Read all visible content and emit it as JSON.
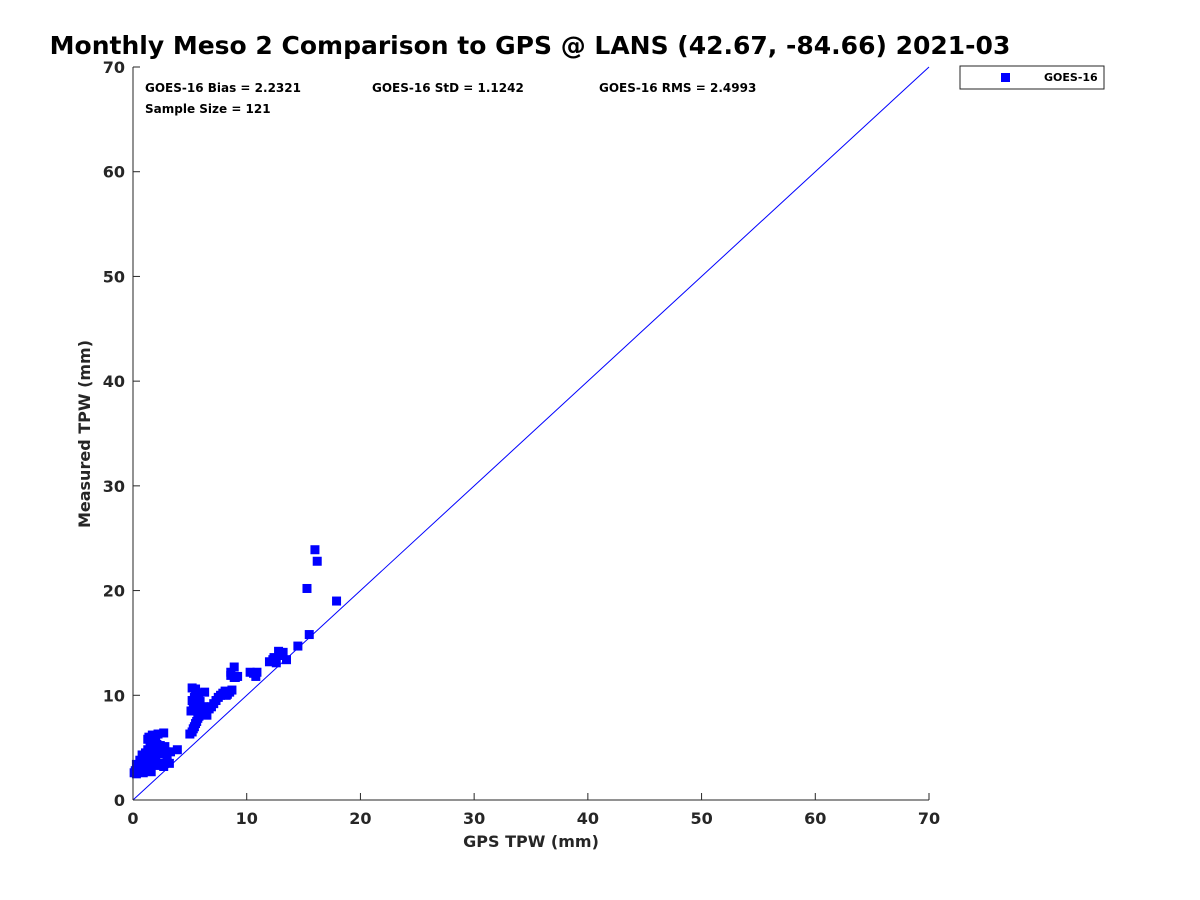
{
  "chart_data": {
    "type": "scatter",
    "title": "Monthly Meso 2 Comparison to GPS @ LANS (42.67, -84.66) 2021-03",
    "xlabel": "GPS TPW (mm)",
    "ylabel": "Measured TPW (mm)",
    "xlim": [
      0,
      70
    ],
    "ylim": [
      0,
      70
    ],
    "xticks": [
      0,
      10,
      20,
      30,
      40,
      50,
      60,
      70
    ],
    "yticks": [
      0,
      10,
      20,
      30,
      40,
      50,
      60,
      70
    ],
    "grid": false,
    "legend_position": "outside-top-right",
    "reference_line": {
      "from": [
        0,
        0
      ],
      "to": [
        70,
        70
      ],
      "color": "#0000ff"
    },
    "stats": {
      "bias": "GOES-16 Bias = 2.2321",
      "std": "GOES-16 StD = 1.1242",
      "rms": "GOES-16 RMS = 2.4993",
      "sample": "Sample Size = 121"
    },
    "series": [
      {
        "name": "GOES-16",
        "color": "#0000ff",
        "marker": "square",
        "x": [
          0.1,
          0.2,
          0.3,
          0.4,
          0.5,
          0.6,
          0.7,
          0.8,
          0.9,
          1.0,
          1.1,
          1.2,
          1.3,
          1.4,
          1.5,
          1.6,
          0.3,
          0.6,
          0.9,
          1.2,
          1.5,
          1.8,
          2.1,
          2.4,
          2.7,
          3.0,
          3.2,
          0.8,
          1.1,
          1.4,
          1.7,
          2.0,
          2.3,
          2.6,
          2.9,
          1.3,
          1.6,
          1.9,
          2.2,
          2.5,
          2.8,
          1.5,
          1.8,
          2.1,
          2.4,
          1.4,
          1.7,
          2.0,
          2.7,
          3.3,
          3.9,
          1.3,
          1.6,
          1.9,
          2.8,
          3.0,
          2.2,
          5.0,
          5.2,
          5.3,
          5.4,
          5.5,
          5.6,
          5.7,
          5.8,
          5.9,
          6.0,
          6.1,
          6.2,
          6.3,
          6.5,
          6.7,
          6.9,
          7.1,
          7.3,
          7.5,
          7.7,
          7.9,
          8.1,
          8.3,
          8.5,
          8.7,
          8.9,
          5.1,
          5.3,
          5.5,
          5.7,
          5.9,
          6.2,
          5.2,
          5.4,
          5.6,
          5.8,
          6.4,
          5.2,
          5.5,
          6.3,
          8.2,
          8.6,
          8.6,
          8.9,
          9.0,
          9.2,
          10.3,
          10.6,
          10.9,
          10.8,
          12.0,
          12.3,
          12.6,
          12.8,
          13.0,
          13.2,
          13.5,
          12.4,
          15.3,
          15.5,
          16.2,
          17.9,
          16.0,
          14.5
        ],
        "y": [
          2.6,
          2.8,
          2.5,
          3.0,
          2.7,
          3.2,
          2.9,
          3.5,
          2.6,
          3.3,
          3.0,
          3.6,
          2.8,
          3.4,
          3.1,
          2.7,
          3.4,
          3.8,
          4.0,
          4.2,
          3.7,
          3.9,
          3.3,
          3.5,
          3.2,
          3.6,
          3.5,
          4.3,
          4.5,
          4.0,
          4.6,
          4.2,
          4.8,
          4.4,
          4.6,
          4.8,
          5.0,
          4.7,
          5.1,
          4.9,
          4.5,
          5.5,
          5.7,
          5.3,
          5.2,
          6.0,
          6.2,
          5.9,
          6.4,
          4.6,
          4.8,
          5.8,
          5.3,
          5.0,
          5.1,
          4.3,
          6.3,
          6.3,
          6.5,
          6.8,
          7.0,
          7.3,
          7.5,
          7.8,
          8.0,
          8.2,
          8.3,
          8.5,
          8.4,
          8.6,
          8.1,
          8.7,
          8.9,
          9.2,
          9.5,
          9.8,
          10.0,
          10.2,
          10.4,
          10.1,
          10.3,
          10.5,
          11.7,
          8.5,
          8.8,
          9.0,
          9.2,
          9.4,
          8.9,
          9.5,
          9.8,
          10.0,
          10.2,
          8.9,
          10.7,
          10.6,
          10.3,
          10.0,
          12.2,
          11.9,
          12.7,
          11.7,
          11.8,
          12.2,
          12.1,
          12.2,
          11.8,
          13.2,
          13.4,
          13.1,
          14.2,
          13.8,
          14.1,
          13.4,
          13.6,
          20.2,
          15.8,
          22.8,
          19.0,
          23.9,
          14.7
        ]
      }
    ]
  },
  "legend": {
    "label": "GOES-16"
  }
}
